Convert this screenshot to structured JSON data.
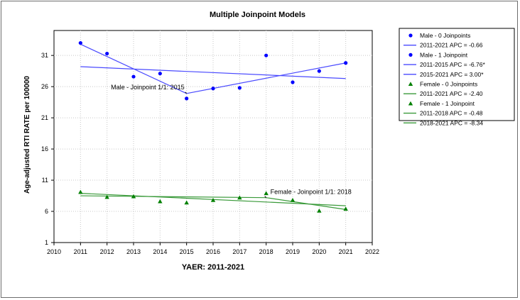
{
  "chart_data": {
    "type": "scatter",
    "title": "Multiple Joinpoint Models",
    "xlabel": "YAER: 2011-2021",
    "ylabel": "Age-adjusted RTI RATE per  100000",
    "xlim": [
      2010,
      2022
    ],
    "ylim": [
      1,
      35
    ],
    "x_ticks": [
      2010,
      2011,
      2012,
      2013,
      2014,
      2015,
      2016,
      2017,
      2018,
      2019,
      2020,
      2021,
      2022
    ],
    "y_ticks": [
      1,
      6,
      11,
      16,
      21,
      26,
      31
    ],
    "grid": true,
    "legend_position": "right",
    "series": [
      {
        "name": "Male - 0 Joinpoints",
        "color": "#0000ff",
        "marker": "circle",
        "x": [
          2011,
          2012,
          2013,
          2014,
          2015,
          2016,
          2017,
          2018,
          2019,
          2020,
          2021
        ],
        "y": [
          33.0,
          31.3,
          27.6,
          28.1,
          24.1,
          25.7,
          25.8,
          31.0,
          26.7,
          28.5,
          29.8
        ]
      },
      {
        "name": "2011-2021 APC  =  -0.66",
        "color": "#4a4aff",
        "type": "line",
        "x": [
          2011,
          2021
        ],
        "y": [
          29.2,
          27.3
        ]
      },
      {
        "name": "Male - 1 Joinpoint",
        "color": "#0000ff",
        "marker": "circle",
        "x": [],
        "y": []
      },
      {
        "name": "2011-2015 APC  =  -6.76*",
        "color": "#4a4aff",
        "type": "line",
        "x": [
          2011,
          2015
        ],
        "y": [
          32.8,
          24.9
        ]
      },
      {
        "name": "2015-2021 APC  =  3.00*",
        "color": "#4a4aff",
        "type": "line",
        "x": [
          2015,
          2021
        ],
        "y": [
          24.9,
          29.8
        ]
      },
      {
        "name": "Female - 0 Joinpoints",
        "color": "#008000",
        "marker": "triangle",
        "x": [
          2011,
          2012,
          2013,
          2014,
          2015,
          2016,
          2017,
          2018,
          2019,
          2020,
          2021
        ],
        "y": [
          9.1,
          8.3,
          8.4,
          7.6,
          7.4,
          7.8,
          8.2,
          8.9,
          7.8,
          6.1,
          6.4
        ]
      },
      {
        "name": "2011-2021 APC  =  -2.40",
        "color": "#3a9a3a",
        "type": "line",
        "x": [
          2011,
          2021
        ],
        "y": [
          8.9,
          6.9
        ]
      },
      {
        "name": "Female - 1 Joinpoint",
        "color": "#008000",
        "marker": "triangle",
        "x": [],
        "y": []
      },
      {
        "name": "2011-2018 APC  =  -0.48",
        "color": "#3a9a3a",
        "type": "line",
        "x": [
          2011,
          2018
        ],
        "y": [
          8.5,
          8.2
        ]
      },
      {
        "name": "2018-2021 APC  =  -8.34",
        "color": "#3a9a3a",
        "type": "line",
        "x": [
          2018,
          2021
        ],
        "y": [
          8.2,
          6.3
        ]
      }
    ],
    "annotations": [
      {
        "text": "Male - Joinpoint 1/1:  2015",
        "x": 2015,
        "y": 24.9,
        "anchor": "upper-left"
      },
      {
        "text": "Female - Joinpoint 1/1:  2018",
        "x": 2018,
        "y": 8.2,
        "anchor": "upper-right"
      }
    ]
  }
}
